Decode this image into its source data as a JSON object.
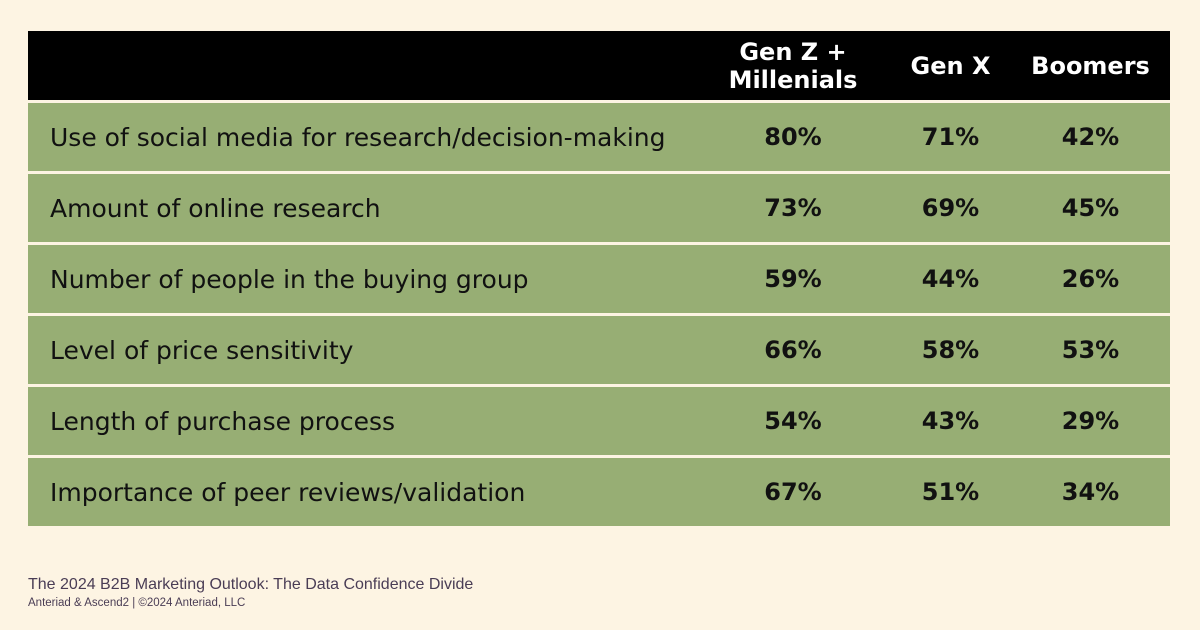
{
  "chart_data": {
    "type": "table",
    "columns": [
      "Gen Z +\nMillenials",
      "Gen X",
      "Boomers"
    ],
    "rows": [
      {
        "label": "Use of social media for research/decision-making",
        "values": [
          "80%",
          "71%",
          "42%"
        ]
      },
      {
        "label": "Amount of online research",
        "values": [
          "73%",
          "69%",
          "45%"
        ]
      },
      {
        "label": "Number of people in the buying group",
        "values": [
          "59%",
          "44%",
          "26%"
        ]
      },
      {
        "label": "Level of price sensitivity",
        "values": [
          "66%",
          "58%",
          "53%"
        ]
      },
      {
        "label": "Length of purchase process",
        "values": [
          "54%",
          "43%",
          "29%"
        ]
      },
      {
        "label": "Importance of peer reviews/validation",
        "values": [
          "67%",
          "51%",
          "34%"
        ]
      }
    ],
    "colors": {
      "header_bg": "#000000",
      "row_bg": "#97ae74",
      "page_bg": "#fdf4e3"
    }
  },
  "footer": {
    "title": "The 2024 B2B Marketing Outlook: The Data Confidence Divide",
    "credit": "Anteriad & Ascend2 | ©2024 Anteriad, LLC"
  }
}
